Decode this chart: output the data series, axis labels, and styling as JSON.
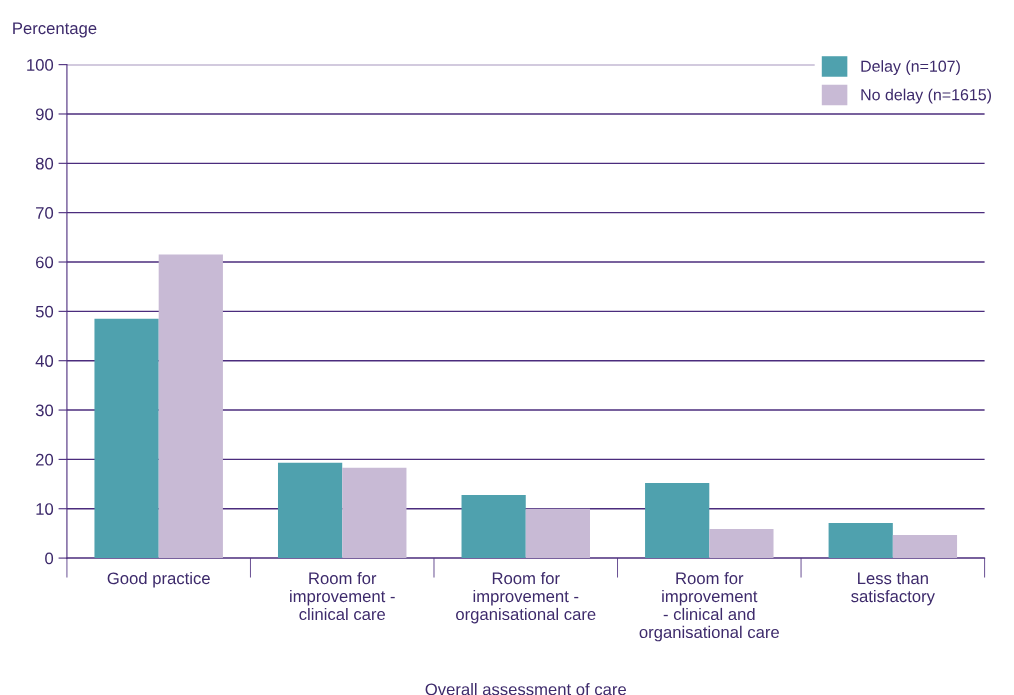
{
  "chart_data": {
    "type": "bar",
    "ylabel": "Percentage",
    "xlabel": "Overall assessment of care",
    "categories": [
      "Good practice",
      "Room for\nimprovement -\nclinical care",
      "Room for\nimprovement -\norganisational care",
      "Room for\nimprovement\n- clinical and\norganisational care",
      "Less than\nsatisfactory"
    ],
    "series": [
      {
        "name": "Delay (n=107)",
        "color": "#4fa1ae",
        "values": [
          48.5,
          19.3,
          12.8,
          15.2,
          7.1
        ]
      },
      {
        "name": "No delay (n=1615)",
        "color": "#c8bad5",
        "values": [
          61.5,
          18.3,
          10.0,
          5.9,
          4.7
        ]
      }
    ],
    "ylim": [
      0,
      100
    ],
    "yticks": [
      0,
      10,
      20,
      30,
      40,
      50,
      60,
      70,
      80,
      90,
      100
    ],
    "grid": "y",
    "legend": "top right"
  }
}
